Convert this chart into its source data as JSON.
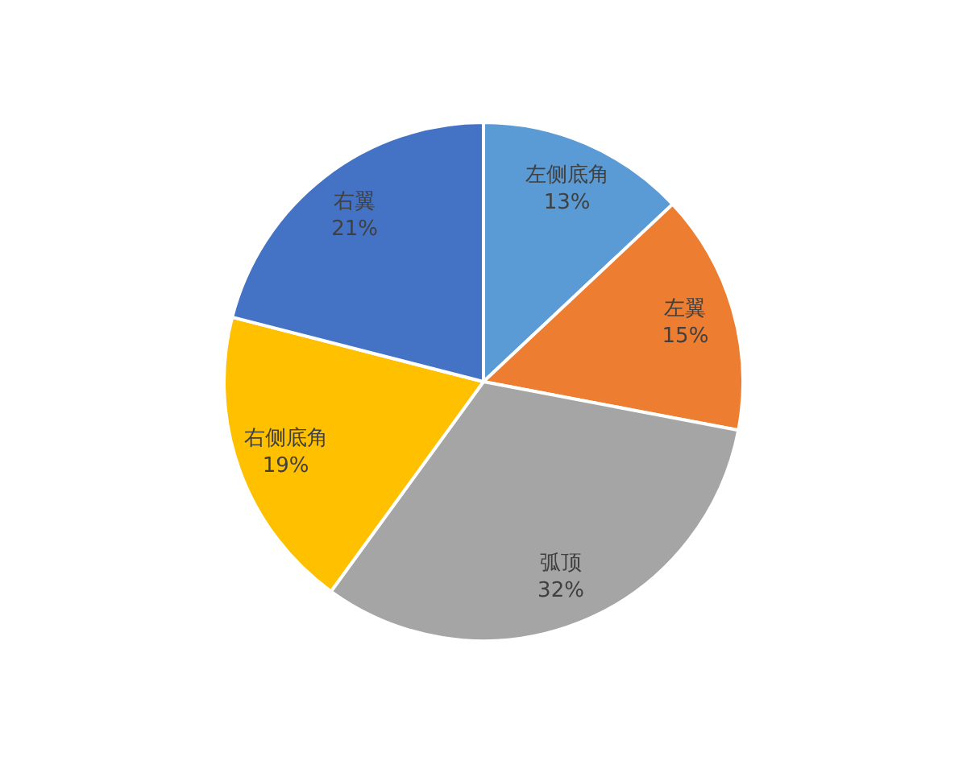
{
  "chart_data": {
    "type": "pie",
    "categories": [
      "左侧底角",
      "左翼",
      "弧顶",
      "右侧底角",
      "右翼"
    ],
    "values": [
      13,
      15,
      32,
      19,
      21
    ],
    "value_labels": [
      "13%",
      "15%",
      "32%",
      "19%",
      "21%"
    ],
    "colors": [
      "#5b9bd5",
      "#ed7d31",
      "#a5a5a5",
      "#ffc000",
      "#4472c4"
    ]
  }
}
